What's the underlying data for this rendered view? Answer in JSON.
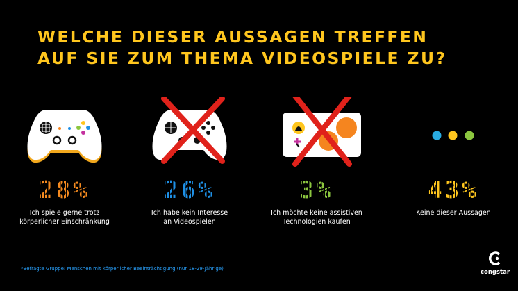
{
  "header": {
    "title_line1": "WELCHE DIESER AUSSAGEN TREFFEN",
    "title_line2": "AUF SIE ZUM THEMA VIDEOSPIELE ZU?"
  },
  "chart_data": {
    "type": "table",
    "categories": [
      "Ich spiele gerne trotz körperlicher Einschränkung",
      "Ich habe kein Interesse an Videospielen",
      "Ich möchte keine assistiven Technologien kaufen",
      "Keine dieser Aussagen"
    ],
    "values": [
      28,
      26,
      3,
      43
    ],
    "items": [
      {
        "value": "28%",
        "label_line1": "Ich spiele gerne trotz",
        "label_line2": "körperlicher Einschränkung",
        "color": "#f58a1f",
        "icon": "game-controller-icon"
      },
      {
        "value": "26%",
        "label_line1": "Ich habe kein Interesse",
        "label_line2": "an Videospielen",
        "color": "#1e90e6",
        "icon": "crossed-out-controller-icon"
      },
      {
        "value": "3%",
        "label_line1": "Ich möchte keine assistiven",
        "label_line2": "Technologien kaufen",
        "color": "#8cc63f",
        "icon": "crossed-out-adaptive-controller-icon"
      },
      {
        "value": "43%",
        "label_line1": "Keine dieser Aussagen",
        "label_line2": "",
        "color": "#ffc61e",
        "icon": "three-dots-icon"
      }
    ]
  },
  "footnote": "*Befragte Gruppe: Menschen mit körperlicher Beeinträchtigung (nur 18-29-Jährige)",
  "logo": {
    "word": "congstar"
  },
  "colors": {
    "title": "#ffc61e",
    "cross": "#e0221b",
    "footnote": "#2aa3ff"
  }
}
